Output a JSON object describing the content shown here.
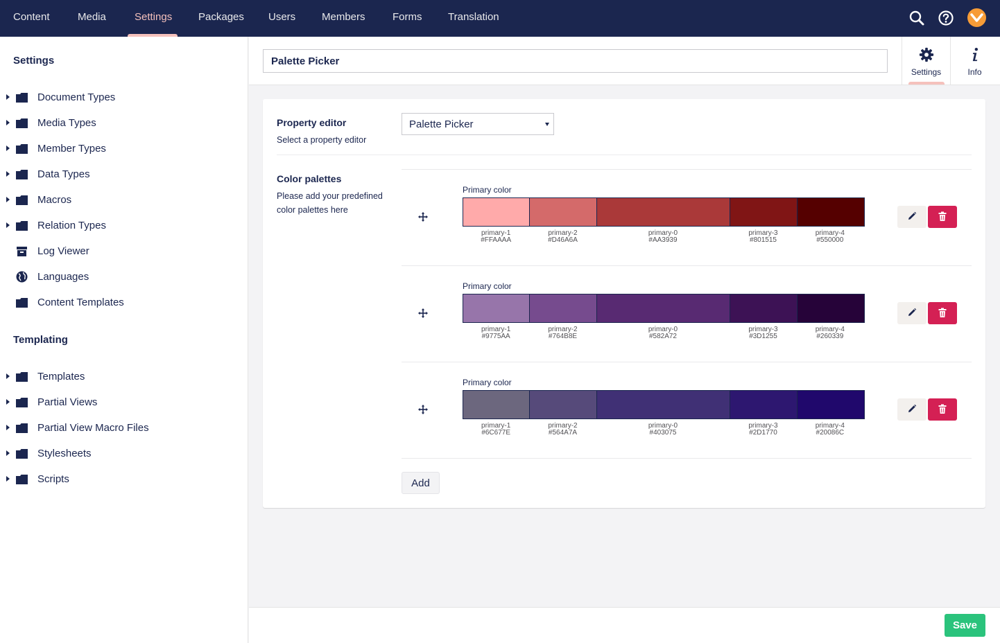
{
  "topnav": {
    "items": [
      {
        "label": "Content"
      },
      {
        "label": "Media"
      },
      {
        "label": "Settings",
        "active": true
      },
      {
        "label": "Packages"
      },
      {
        "label": "Users"
      },
      {
        "label": "Members"
      },
      {
        "label": "Forms"
      },
      {
        "label": "Translation"
      }
    ],
    "icons": [
      "search-icon",
      "help-icon",
      "user-avatar"
    ],
    "active_color": "#f5c1bc",
    "bar_color": "#1b264f"
  },
  "sidebar": {
    "settings_heading": "Settings",
    "settings_items": [
      {
        "label": "Document Types",
        "icon": "folder-icon",
        "expandable": true
      },
      {
        "label": "Media Types",
        "icon": "folder-icon",
        "expandable": true
      },
      {
        "label": "Member Types",
        "icon": "folder-icon",
        "expandable": true
      },
      {
        "label": "Data Types",
        "icon": "folder-icon",
        "expandable": true
      },
      {
        "label": "Macros",
        "icon": "folder-icon",
        "expandable": true
      },
      {
        "label": "Relation Types",
        "icon": "folder-icon",
        "expandable": true
      },
      {
        "label": "Log Viewer",
        "icon": "box-icon",
        "expandable": false
      },
      {
        "label": "Languages",
        "icon": "globe-icon",
        "expandable": false
      },
      {
        "label": "Content Templates",
        "icon": "folder-icon",
        "expandable": false
      }
    ],
    "templating_heading": "Templating",
    "templating_items": [
      {
        "label": "Templates",
        "icon": "folder-icon",
        "expandable": true
      },
      {
        "label": "Partial Views",
        "icon": "folder-icon",
        "expandable": true
      },
      {
        "label": "Partial View Macro Files",
        "icon": "folder-icon",
        "expandable": true
      },
      {
        "label": "Stylesheets",
        "icon": "folder-icon",
        "expandable": true
      },
      {
        "label": "Scripts",
        "icon": "folder-icon",
        "expandable": true
      }
    ]
  },
  "header": {
    "name_value": "Palette Picker",
    "tabs": [
      {
        "label": "Settings",
        "icon": "gear-icon",
        "active": true
      },
      {
        "label": "Info",
        "icon": "info-icon",
        "active": false
      }
    ]
  },
  "property_editor": {
    "label": "Property editor",
    "description": "Select a property editor",
    "selected": "Palette Picker"
  },
  "color_palettes": {
    "label": "Color palettes",
    "description": "Please add your predefined color palettes here",
    "palettes": [
      {
        "title": "Primary color",
        "colors": [
          {
            "name": "primary-1",
            "hex": "#FFAAAA",
            "flex": 1
          },
          {
            "name": "primary-2",
            "hex": "#D46A6A",
            "flex": 1
          },
          {
            "name": "primary-0",
            "hex": "#AA3939",
            "flex": 2
          },
          {
            "name": "primary-3",
            "hex": "#801515",
            "flex": 1
          },
          {
            "name": "primary-4",
            "hex": "#550000",
            "flex": 1
          }
        ]
      },
      {
        "title": "Primary color",
        "colors": [
          {
            "name": "primary-1",
            "hex": "#9775AA",
            "flex": 1
          },
          {
            "name": "primary-2",
            "hex": "#764B8E",
            "flex": 1
          },
          {
            "name": "primary-0",
            "hex": "#582A72",
            "flex": 2
          },
          {
            "name": "primary-3",
            "hex": "#3D1255",
            "flex": 1
          },
          {
            "name": "primary-4",
            "hex": "#260339",
            "flex": 1
          }
        ]
      },
      {
        "title": "Primary color",
        "colors": [
          {
            "name": "primary-1",
            "hex": "#6C677E",
            "flex": 1
          },
          {
            "name": "primary-2",
            "hex": "#564A7A",
            "flex": 1
          },
          {
            "name": "primary-0",
            "hex": "#403075",
            "flex": 2
          },
          {
            "name": "primary-3",
            "hex": "#2D1770",
            "flex": 1
          },
          {
            "name": "primary-4",
            "hex": "#20086C",
            "flex": 1
          }
        ]
      }
    ],
    "add_label": "Add"
  },
  "footer": {
    "save_label": "Save",
    "save_color": "#2bc37c",
    "delete_color": "#d42054"
  }
}
